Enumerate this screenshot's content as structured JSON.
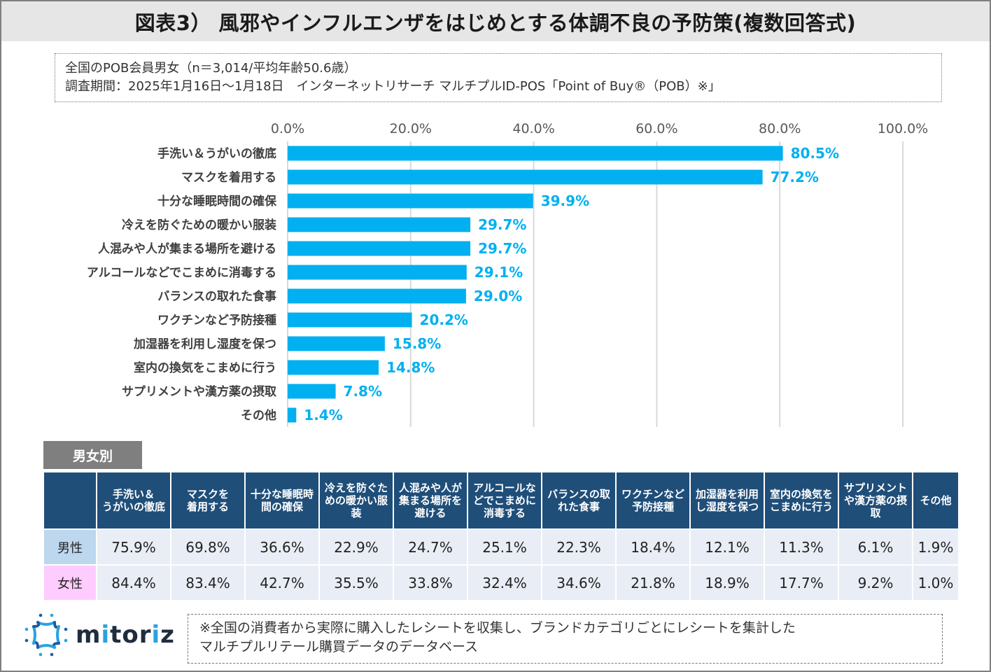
{
  "title": "図表3） 風邪やインフルエンザをはじめとする体調不良の予防策(複数回答式)",
  "meta": {
    "line1": "全国のPOB会員男女（n＝3,014/平均年齢50.6歳）",
    "line2": "調査期間：2025年1月16日～1月18日　インターネットリサーチ マルチプルID-POS「Point of Buy®（POB）※」"
  },
  "chart_data": {
    "type": "bar",
    "orientation": "horizontal",
    "title": "",
    "xlabel": "",
    "ylabel": "",
    "xlim": [
      0,
      100
    ],
    "grid": true,
    "tick_labels": [
      "0.0%",
      "20.0%",
      "40.0%",
      "60.0%",
      "80.0%",
      "100.0%"
    ],
    "tick_values": [
      0,
      20,
      40,
      60,
      80,
      100
    ],
    "axis_position": "top",
    "bar_color": "#00b0f0",
    "label_color": "#00b0f0",
    "categories": [
      "手洗い＆うがいの徹底",
      "マスクを着用する",
      "十分な睡眠時間の確保",
      "冷えを防ぐための暖かい服装",
      "人混みや人が集まる場所を避ける",
      "アルコールなどでこまめに消毒する",
      "バランスの取れた食事",
      "ワクチンなど予防接種",
      "加湿器を利用し湿度を保つ",
      "室内の換気をこまめに行う",
      "サプリメントや漢方薬の摂取",
      "その他"
    ],
    "values": [
      80.5,
      77.2,
      39.9,
      29.7,
      29.7,
      29.1,
      29.0,
      20.2,
      15.8,
      14.8,
      7.8,
      1.4
    ],
    "data_labels": [
      "80.5%",
      "77.2%",
      "39.9%",
      "29.7%",
      "29.7%",
      "29.1%",
      "29.0%",
      "20.2%",
      "15.8%",
      "14.8%",
      "7.8%",
      "1.4%"
    ]
  },
  "gender_table": {
    "section_label": "男女別",
    "header_colors": {
      "header_bg": "#1f4e79",
      "male_bg": "#bdd7ee",
      "female_bg": "#ffccff",
      "cell_bg": "#e9edf5"
    },
    "columns": [
      "手洗い＆\nうがいの徹底",
      "マスクを\n着用する",
      "十分な睡眠時\n間の確保",
      "冷えを防ぐた\nめの暖かい服\n装",
      "人混みや人が\n集まる場所を\n避ける",
      "アルコールな\nどでこまめに\n消毒する",
      "バランスの取\nれた食事",
      "ワクチンなど\n予防接種",
      "加湿器を利用\nし湿度を保つ",
      "室内の換気を\nこまめに行う",
      "サプリメント\nや漢方薬の摂\n取",
      "その他"
    ],
    "rows": [
      {
        "label": "男性",
        "values": [
          "75.9%",
          "69.8%",
          "36.6%",
          "22.9%",
          "24.7%",
          "25.1%",
          "22.3%",
          "18.4%",
          "12.1%",
          "11.3%",
          "6.1%",
          "1.9%"
        ]
      },
      {
        "label": "女性",
        "values": [
          "84.4%",
          "83.4%",
          "42.7%",
          "35.5%",
          "33.8%",
          "32.4%",
          "34.6%",
          "21.8%",
          "18.9%",
          "17.7%",
          "9.2%",
          "1.0%"
        ]
      }
    ]
  },
  "footer": {
    "logo_icon": "mitoriz-star-logo-icon",
    "logo_text_pre": "m",
    "logo_text_i1": "i",
    "logo_text_mid": "tor",
    "logo_text_i2": "i",
    "logo_text_post": "z",
    "note_line1": "※全国の消費者から実際に購入したレシートを収集し、ブランドカテゴリごとにレシートを集計した",
    "note_line2": "マルチプルリテール購買データのデータベース"
  }
}
